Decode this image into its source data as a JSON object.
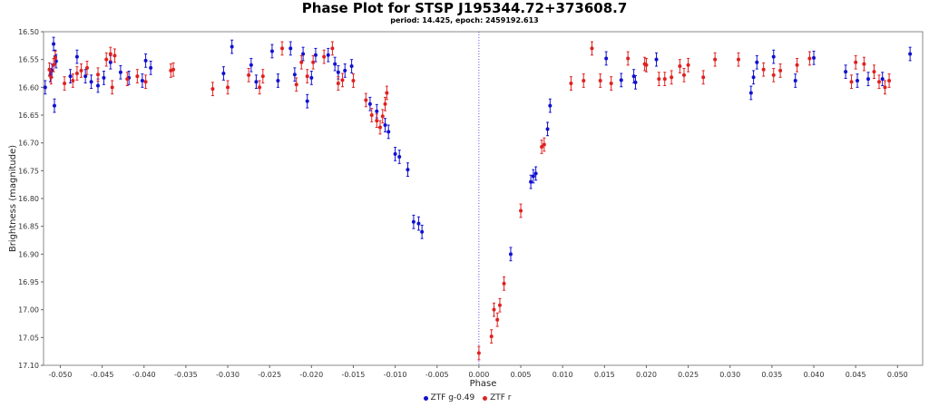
{
  "chart_data": {
    "type": "scatter",
    "title": "Phase Plot for STSP J195344.72+373608.7",
    "subtitle": "period: 14.425, epoch: 2459192.613",
    "xlabel": "Phase",
    "ylabel": "Brightness (magnitude)",
    "xlim": [
      -0.052,
      0.053
    ],
    "ylim": [
      16.5,
      17.1
    ],
    "y_inverted": true,
    "x_ticks": [
      "-0.050",
      "-0.045",
      "-0.040",
      "-0.035",
      "-0.030",
      "-0.025",
      "-0.020",
      "-0.015",
      "-0.010",
      "-0.005",
      "0.000",
      "0.005",
      "0.010",
      "0.015",
      "0.020",
      "0.025",
      "0.030",
      "0.035",
      "0.040",
      "0.045",
      "0.050"
    ],
    "y_ticks": [
      "16.50",
      "16.55",
      "16.60",
      "16.65",
      "16.70",
      "16.75",
      "16.80",
      "16.85",
      "16.90",
      "16.95",
      "17.00",
      "17.05",
      "17.10"
    ],
    "grid": false,
    "epoch_marker_x": 0.0,
    "legend_position": "bottom-center",
    "series": [
      {
        "name": "ZTF g-0.49",
        "color": "#1010d0",
        "error": 0.012,
        "points": [
          [
            -0.0518,
            16.6
          ],
          [
            -0.0512,
            16.578
          ],
          [
            -0.051,
            16.57
          ],
          [
            -0.0508,
            16.522
          ],
          [
            -0.0507,
            16.633
          ],
          [
            -0.0506,
            16.545
          ],
          [
            -0.0505,
            16.553
          ],
          [
            -0.0488,
            16.58
          ],
          [
            -0.048,
            16.545
          ],
          [
            -0.047,
            16.58
          ],
          [
            -0.0463,
            16.59
          ],
          [
            -0.0455,
            16.597
          ],
          [
            -0.0448,
            16.583
          ],
          [
            -0.044,
            16.555
          ],
          [
            -0.0428,
            16.573
          ],
          [
            -0.0418,
            16.583
          ],
          [
            -0.0402,
            16.588
          ],
          [
            -0.0398,
            16.552
          ],
          [
            -0.0392,
            16.565
          ],
          [
            -0.0305,
            16.575
          ],
          [
            -0.0295,
            16.527
          ],
          [
            -0.0272,
            16.56
          ],
          [
            -0.0266,
            16.59
          ],
          [
            -0.0247,
            16.535
          ],
          [
            -0.024,
            16.588
          ],
          [
            -0.0225,
            16.53
          ],
          [
            -0.022,
            16.577
          ],
          [
            -0.021,
            16.54
          ],
          [
            -0.0205,
            16.625
          ],
          [
            -0.02,
            16.583
          ],
          [
            -0.0195,
            16.542
          ],
          [
            -0.018,
            16.542
          ],
          [
            -0.0172,
            16.558
          ],
          [
            -0.0168,
            16.573
          ],
          [
            -0.016,
            16.57
          ],
          [
            -0.0152,
            16.562
          ],
          [
            -0.013,
            16.63
          ],
          [
            -0.0122,
            16.643
          ],
          [
            -0.0112,
            16.668
          ],
          [
            -0.0108,
            16.68
          ],
          [
            -0.01,
            16.72
          ],
          [
            -0.0095,
            16.725
          ],
          [
            -0.0085,
            16.748
          ],
          [
            -0.0078,
            16.842
          ],
          [
            -0.0072,
            16.845
          ],
          [
            -0.0068,
            16.86
          ],
          [
            0.0038,
            16.9
          ],
          [
            0.0062,
            16.77
          ],
          [
            0.0065,
            16.76
          ],
          [
            0.0068,
            16.755
          ],
          [
            0.0082,
            16.675
          ],
          [
            0.0085,
            16.633
          ],
          [
            0.0152,
            16.548
          ],
          [
            0.017,
            16.587
          ],
          [
            0.0185,
            16.58
          ],
          [
            0.0187,
            16.591
          ],
          [
            0.0212,
            16.55
          ],
          [
            0.0325,
            16.61
          ],
          [
            0.0328,
            16.582
          ],
          [
            0.0332,
            16.555
          ],
          [
            0.0352,
            16.545
          ],
          [
            0.0378,
            16.588
          ],
          [
            0.04,
            16.547
          ],
          [
            0.0438,
            16.572
          ],
          [
            0.0452,
            16.588
          ],
          [
            0.0465,
            16.585
          ],
          [
            0.0482,
            16.585
          ],
          [
            0.0515,
            16.54
          ]
        ]
      },
      {
        "name": "ZTF r",
        "color": "#e02020",
        "error": 0.012,
        "points": [
          [
            -0.0513,
            16.568
          ],
          [
            -0.0511,
            16.582
          ],
          [
            -0.0508,
            16.56
          ],
          [
            -0.0506,
            16.547
          ],
          [
            -0.0495,
            16.593
          ],
          [
            -0.0485,
            16.588
          ],
          [
            -0.048,
            16.575
          ],
          [
            -0.0475,
            16.57
          ],
          [
            -0.0468,
            16.565
          ],
          [
            -0.0455,
            16.577
          ],
          [
            -0.0445,
            16.55
          ],
          [
            -0.044,
            16.54
          ],
          [
            -0.0438,
            16.6
          ],
          [
            -0.0435,
            16.543
          ],
          [
            -0.042,
            16.585
          ],
          [
            -0.0408,
            16.58
          ],
          [
            -0.0398,
            16.59
          ],
          [
            -0.0368,
            16.57
          ],
          [
            -0.0365,
            16.568
          ],
          [
            -0.0318,
            16.603
          ],
          [
            -0.03,
            16.6
          ],
          [
            -0.0275,
            16.578
          ],
          [
            -0.0262,
            16.6
          ],
          [
            -0.0258,
            16.58
          ],
          [
            -0.0235,
            16.53
          ],
          [
            -0.0218,
            16.595
          ],
          [
            -0.0212,
            16.555
          ],
          [
            -0.0205,
            16.58
          ],
          [
            -0.0198,
            16.555
          ],
          [
            -0.0185,
            16.545
          ],
          [
            -0.0175,
            16.53
          ],
          [
            -0.0168,
            16.593
          ],
          [
            -0.0163,
            16.587
          ],
          [
            -0.015,
            16.588
          ],
          [
            -0.0135,
            16.623
          ],
          [
            -0.0128,
            16.65
          ],
          [
            -0.0122,
            16.66
          ],
          [
            -0.0118,
            16.672
          ],
          [
            -0.0115,
            16.652
          ],
          [
            -0.0112,
            16.63
          ],
          [
            -0.011,
            16.61
          ],
          [
            0.0,
            17.078
          ],
          [
            0.0015,
            17.048
          ],
          [
            0.0018,
            17.0
          ],
          [
            0.0022,
            17.018
          ],
          [
            0.0025,
            16.992
          ],
          [
            0.003,
            16.953
          ],
          [
            0.005,
            16.822
          ],
          [
            0.0075,
            16.707
          ],
          [
            0.0078,
            16.703
          ],
          [
            0.011,
            16.593
          ],
          [
            0.0125,
            16.588
          ],
          [
            0.0135,
            16.53
          ],
          [
            0.0145,
            16.588
          ],
          [
            0.0158,
            16.593
          ],
          [
            0.0178,
            16.548
          ],
          [
            0.0198,
            16.558
          ],
          [
            0.02,
            16.56
          ],
          [
            0.0215,
            16.585
          ],
          [
            0.0222,
            16.585
          ],
          [
            0.023,
            16.582
          ],
          [
            0.024,
            16.562
          ],
          [
            0.0245,
            16.578
          ],
          [
            0.025,
            16.56
          ],
          [
            0.0268,
            16.582
          ],
          [
            0.0282,
            16.55
          ],
          [
            0.031,
            16.55
          ],
          [
            0.034,
            16.568
          ],
          [
            0.0352,
            16.578
          ],
          [
            0.036,
            16.57
          ],
          [
            0.038,
            16.56
          ],
          [
            0.0395,
            16.548
          ],
          [
            0.0445,
            16.59
          ],
          [
            0.045,
            16.555
          ],
          [
            0.046,
            16.558
          ],
          [
            0.0472,
            16.572
          ],
          [
            0.0478,
            16.59
          ],
          [
            0.0485,
            16.6
          ],
          [
            0.049,
            16.588
          ]
        ]
      }
    ]
  }
}
